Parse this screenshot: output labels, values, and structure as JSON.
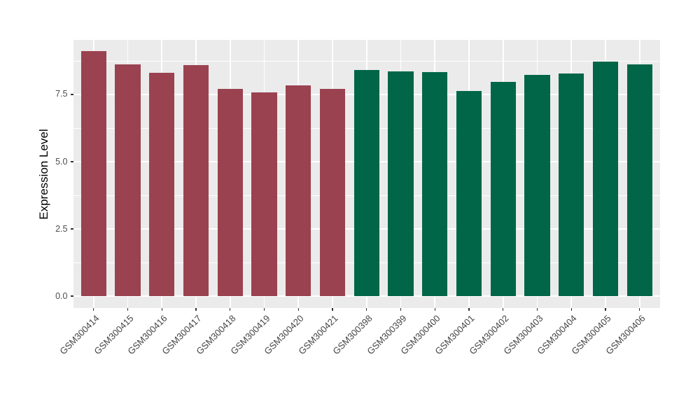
{
  "chart_data": {
    "type": "bar",
    "title": "",
    "xlabel": "",
    "ylabel": "Expression Level",
    "legend": "none",
    "grid": true,
    "bar_width_ratio": 0.74,
    "bars": [
      {
        "label": "GSM300414",
        "value": 9.11,
        "color": "#9A4250",
        "group": "group-red"
      },
      {
        "label": "GSM300415",
        "value": 8.62,
        "color": "#9A4250",
        "group": "group-red"
      },
      {
        "label": "GSM300416",
        "value": 8.3,
        "color": "#9A4250",
        "group": "group-red"
      },
      {
        "label": "GSM300417",
        "value": 8.6,
        "color": "#9A4250",
        "group": "group-red"
      },
      {
        "label": "GSM300418",
        "value": 7.71,
        "color": "#9A4250",
        "group": "group-red"
      },
      {
        "label": "GSM300419",
        "value": 7.58,
        "color": "#9A4250",
        "group": "group-red"
      },
      {
        "label": "GSM300420",
        "value": 7.83,
        "color": "#9A4250",
        "group": "group-red"
      },
      {
        "label": "GSM300421",
        "value": 7.7,
        "color": "#9A4250",
        "group": "group-red"
      },
      {
        "label": "GSM300398",
        "value": 8.41,
        "color": "#006647",
        "group": "group-green"
      },
      {
        "label": "GSM300399",
        "value": 8.36,
        "color": "#006647",
        "group": "group-green"
      },
      {
        "label": "GSM300400",
        "value": 8.34,
        "color": "#006647",
        "group": "group-green"
      },
      {
        "label": "GSM300401",
        "value": 7.64,
        "color": "#006647",
        "group": "group-green"
      },
      {
        "label": "GSM300402",
        "value": 7.96,
        "color": "#006647",
        "group": "group-green"
      },
      {
        "label": "GSM300403",
        "value": 8.24,
        "color": "#006647",
        "group": "group-green"
      },
      {
        "label": "GSM300404",
        "value": 8.28,
        "color": "#006647",
        "group": "group-green"
      },
      {
        "label": "GSM300405",
        "value": 8.72,
        "color": "#006647",
        "group": "group-green"
      },
      {
        "label": "GSM300406",
        "value": 8.61,
        "color": "#006647",
        "group": "group-green"
      }
    ],
    "y_axis": {
      "ylim": [
        -0.44,
        9.53
      ],
      "ticks": [
        {
          "label": "0.0",
          "value": 0.0
        },
        {
          "label": "2.5",
          "value": 2.5
        },
        {
          "label": "5.0",
          "value": 5.0
        },
        {
          "label": "7.5",
          "value": 7.5
        }
      ],
      "minor_ticks": [
        1.25,
        3.75,
        6.25,
        8.75
      ]
    },
    "colors": {
      "panel_bg": "#EBEBEB",
      "grid": "#FFFFFF",
      "axis_text": "#4D4D4D",
      "axis_title": "#000000",
      "tick_mark": "#333333",
      "bar_red": "#9A4250",
      "bar_green": "#006647"
    }
  }
}
